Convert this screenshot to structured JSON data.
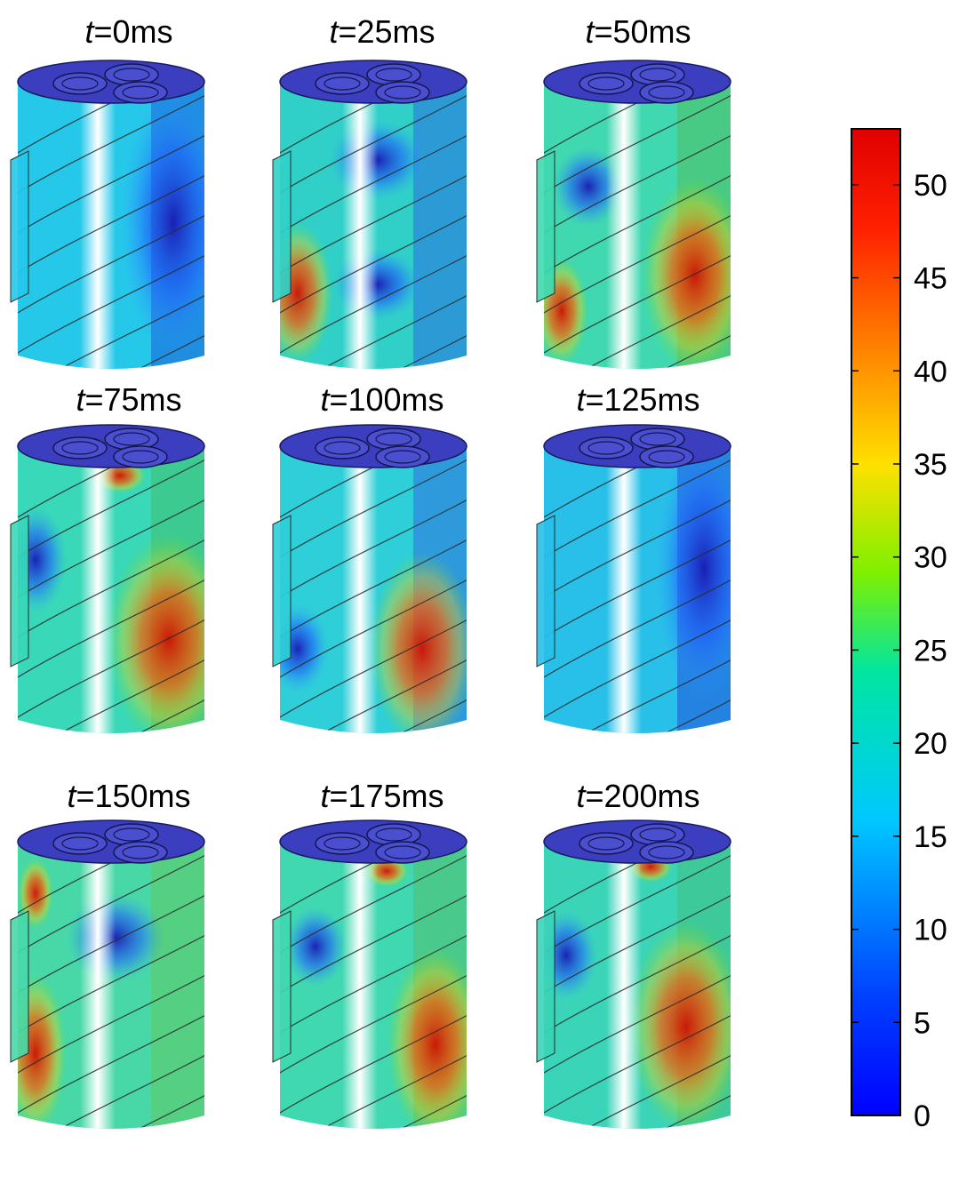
{
  "panels": [
    {
      "time_label": "t",
      "value_label": "=0ms"
    },
    {
      "time_label": "t",
      "value_label": "=25ms"
    },
    {
      "time_label": "t",
      "value_label": "=50ms"
    },
    {
      "time_label": "t",
      "value_label": "=75ms"
    },
    {
      "time_label": "t",
      "value_label": "=100ms"
    },
    {
      "time_label": "t",
      "value_label": "=125ms"
    },
    {
      "time_label": "t",
      "value_label": "=150ms"
    },
    {
      "time_label": "t",
      "value_label": "=175ms"
    },
    {
      "time_label": "t",
      "value_label": "=200ms"
    }
  ],
  "colorbar": {
    "min": 0,
    "max": 53,
    "ticks": [
      "0",
      "5",
      "10",
      "15",
      "20",
      "25",
      "30",
      "35",
      "40",
      "45",
      "50"
    ],
    "colormap": "jet"
  },
  "colors": {
    "cable_top": "#3b3fbf",
    "helix_line": "#2a2a2a",
    "low": "#0000ff",
    "high": "#ff0000"
  }
}
